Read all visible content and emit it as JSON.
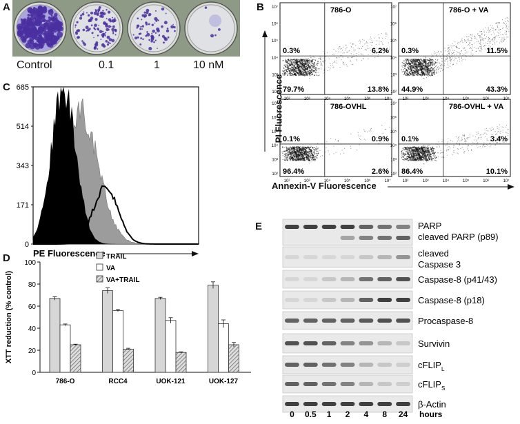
{
  "panels": {
    "a": "A",
    "b": "B",
    "c": "C",
    "d": "D",
    "e": "E"
  },
  "colony": {
    "labels": [
      "Control",
      "0.1",
      "1",
      "10 nM"
    ]
  },
  "flow": {
    "y_axis_label": "PI Fluorescence",
    "x_axis_label": "Annexin-V Fluorescence",
    "y_ticks": [
      "10⁷",
      "10⁶",
      "10⁵",
      "10⁴",
      "10³",
      "10²"
    ],
    "x_ticks": [
      "10²",
      "10³",
      "10⁴",
      "10⁵",
      "10⁶",
      "10⁷"
    ],
    "plots": [
      {
        "title": "786-O",
        "ul": "0.3%",
        "ur": "6.2%",
        "ll": "79.7%",
        "lr": "13.8%"
      },
      {
        "title": "786-O + VA",
        "ul": "0.3%",
        "ur": "11.5%",
        "ll": "44.9%",
        "lr": "43.3%"
      },
      {
        "title": "786-OVHL",
        "ul": "0.1%",
        "ur": "0.9%",
        "ll": "96.4%",
        "lr": "2.6%"
      },
      {
        "title": "786-OVHL + VA",
        "ul": "0.1%",
        "ur": "3.4%",
        "ll": "86.4%",
        "lr": "10.1%"
      }
    ]
  },
  "histogram": {
    "xlabel": "PE Fluorescence",
    "y_ticks": [
      "685",
      "514",
      "343",
      "171",
      "0"
    ]
  },
  "chart_data": {
    "type": "bar",
    "categories": [
      "786-O",
      "RCC4",
      "UOK-121",
      "UOK-127"
    ],
    "ylabel": "XTT reduction (% control)",
    "ylim": [
      0,
      100
    ],
    "y_ticks": [
      "0",
      "20",
      "40",
      "60",
      "80",
      "100"
    ],
    "series": [
      {
        "name": "TRAIL",
        "values": [
          67,
          74,
          67,
          79
        ],
        "errors": [
          1.5,
          2.5,
          1,
          3
        ]
      },
      {
        "name": "VA",
        "values": [
          43,
          56,
          47,
          44
        ],
        "errors": [
          0.8,
          1,
          2.5,
          3.5
        ]
      },
      {
        "name": "VA+TRAIL",
        "values": [
          25,
          21,
          18,
          25
        ],
        "errors": [
          0.5,
          0.8,
          0.6,
          2
        ]
      }
    ],
    "legend_position": "top"
  },
  "western": {
    "rows": [
      {
        "label": "PARP",
        "label2": "cleaved PARP (p89)"
      },
      {
        "label": "cleaved",
        "label2": "Caspase 3"
      },
      {
        "label": "Caspase-8 (p41/43)",
        "label2": ""
      },
      {
        "label": "Caspase-8 (p18)",
        "label2": ""
      },
      {
        "label": "Procaspase-8",
        "label2": ""
      },
      {
        "label": "Survivin",
        "label2": ""
      },
      {
        "label": "cFLIP",
        "sub": "L",
        "label2": ""
      },
      {
        "label": "cFLIP",
        "sub": "S",
        "label2": ""
      },
      {
        "label": "β-Actin",
        "label2": ""
      }
    ],
    "time_points": [
      "0",
      "0.5",
      "1",
      "2",
      "4",
      "8",
      "24"
    ],
    "time_unit": "hours"
  }
}
